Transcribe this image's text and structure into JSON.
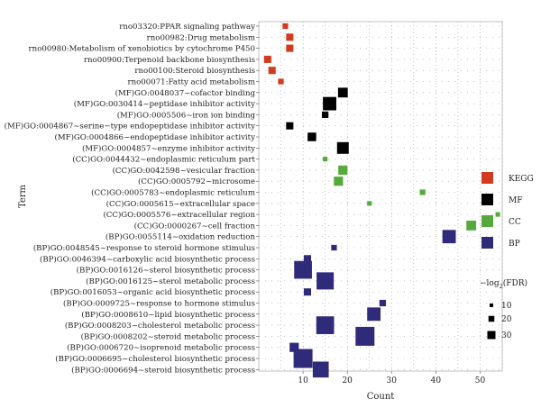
{
  "chart_data": {
    "type": "scatter",
    "xlabel": "Count",
    "ylabel": "Term",
    "xlim": [
      0,
      55
    ],
    "x_ticks": [
      10,
      20,
      30,
      40,
      50
    ],
    "grid": "dotted",
    "legend_position": "right",
    "categories": [
      {
        "name": "KEGG",
        "color": "#d33a1f"
      },
      {
        "name": "MF",
        "color": "#000000"
      },
      {
        "name": "CC",
        "color": "#55aa3b"
      },
      {
        "name": "BP",
        "color": "#2f2a7a"
      }
    ],
    "size_legend": {
      "title_prefix": "−log",
      "title_sub": "2",
      "title_suffix": "(FDR)",
      "levels": [
        10,
        20,
        30
      ]
    },
    "points": [
      {
        "term": "rno03320:PPAR signaling pathway",
        "category": "KEGG",
        "count": 6,
        "fdr": 3
      },
      {
        "term": "rno00982:Drug metabolism",
        "category": "KEGG",
        "count": 7,
        "fdr": 5
      },
      {
        "term": "rno00980:Metabolism of xenobiotics by cytochrome P450",
        "category": "KEGG",
        "count": 7,
        "fdr": 5
      },
      {
        "term": "rno00900:Terpenoid backbone biosynthesis",
        "category": "KEGG",
        "count": 2,
        "fdr": 5
      },
      {
        "term": "rno00100:Steroid biosynthesis",
        "category": "KEGG",
        "count": 3,
        "fdr": 5
      },
      {
        "term": "rno00071:Fatty acid metabolism",
        "category": "KEGG",
        "count": 5,
        "fdr": 3
      },
      {
        "term": "(MF)GO:0048037~cofactor binding",
        "category": "MF",
        "count": 19,
        "fdr": 9
      },
      {
        "term": "(MF)GO:0030414~peptidase inhibitor activity",
        "category": "MF",
        "count": 16,
        "fdr": 17
      },
      {
        "term": "(MF)GO:0005506~iron ion binding",
        "category": "MF",
        "count": 15,
        "fdr": 4
      },
      {
        "term": "(MF)GO:0004867~serine−type endopeptidase inhibitor activity",
        "category": "MF",
        "count": 7,
        "fdr": 5
      },
      {
        "term": "(MF)GO:0004866~endopeptidase inhibitor activity",
        "category": "MF",
        "count": 12,
        "fdr": 7
      },
      {
        "term": "(MF)GO:0004857~enzyme inhibitor activity",
        "category": "MF",
        "count": 19,
        "fdr": 13
      },
      {
        "term": "(CC)GO:0044432~endoplasmic reticulum part",
        "category": "CC",
        "count": 15,
        "fdr": 2
      },
      {
        "term": "(CC)GO:0042598~vesicular fraction",
        "category": "CC",
        "count": 19,
        "fdr": 8
      },
      {
        "term": "(CC)GO:0005792~microsome",
        "category": "CC",
        "count": 18,
        "fdr": 8
      },
      {
        "term": "(CC)GO:0005783~endoplasmic reticulum",
        "category": "CC",
        "count": 37,
        "fdr": 3
      },
      {
        "term": "(CC)GO:0005615~extracellular space",
        "category": "CC",
        "count": 25,
        "fdr": 2
      },
      {
        "term": "(CC)GO:0005576~extracellular region",
        "category": "CC",
        "count": 54,
        "fdr": 2
      },
      {
        "term": "(CC)GO:0000267~cell fraction",
        "category": "CC",
        "count": 48,
        "fdr": 9
      },
      {
        "term": "(BP)GO:0055114~oxidation reduction",
        "category": "BP",
        "count": 43,
        "fdr": 17
      },
      {
        "term": "(BP)GO:0048545~response to steroid hormone stimulus",
        "category": "BP",
        "count": 17,
        "fdr": 3
      },
      {
        "term": "(BP)GO:0046394~carboxylic acid biosynthetic process",
        "category": "BP",
        "count": 11,
        "fdr": 5
      },
      {
        "term": "(BP)GO:0016126~sterol biosynthetic process",
        "category": "BP",
        "count": 10,
        "fdr": 30
      },
      {
        "term": "(BP)GO:0016125~sterol metabolic process",
        "category": "BP",
        "count": 15,
        "fdr": 28
      },
      {
        "term": "(BP)GO:0016053~organic acid biosynthetic process",
        "category": "BP",
        "count": 11,
        "fdr": 5
      },
      {
        "term": "(BP)GO:0009725~response to hormone stimulus",
        "category": "BP",
        "count": 28,
        "fdr": 4
      },
      {
        "term": "(BP)GO:0008610~lipid biosynthetic process",
        "category": "BP",
        "count": 26,
        "fdr": 17
      },
      {
        "term": "(BP)GO:0008203~cholesterol metabolic process",
        "category": "BP",
        "count": 15,
        "fdr": 30
      },
      {
        "term": "(BP)GO:0008202~steroid metabolic process",
        "category": "BP",
        "count": 24,
        "fdr": 34
      },
      {
        "term": "(BP)GO:0006720~isoprenoid metabolic process",
        "category": "BP",
        "count": 8,
        "fdr": 8
      },
      {
        "term": "(BP)GO:0006695~cholesterol biosynthetic process",
        "category": "BP",
        "count": 10,
        "fdr": 34
      },
      {
        "term": "(BP)GO:0006694~steroid biosynthetic process",
        "category": "BP",
        "count": 14,
        "fdr": 24
      }
    ]
  }
}
